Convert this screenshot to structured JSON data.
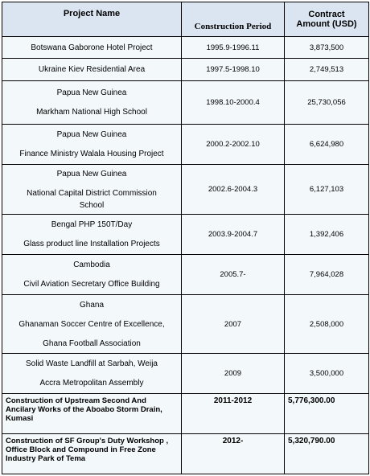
{
  "headers": {
    "project_name": "Project Name",
    "construction_period": "Construction Period",
    "contract_amount_line1": "Contract",
    "contract_amount_line2": "Amount (USD)"
  },
  "rows": [
    {
      "name_lines": [
        "Botswana Gaborone Hotel Project"
      ],
      "period": "1995.9-1996.11",
      "amount": "3,873,500"
    },
    {
      "name_lines": [
        "Ukraine Kiev Residential Area"
      ],
      "period": "1997.5-1998.10",
      "amount": "2,749,513"
    },
    {
      "name_lines": [
        "Papua New Guinea",
        "Markham National High School"
      ],
      "period": "1998.10-2000.4",
      "amount": "25,730,056"
    },
    {
      "name_lines": [
        "Papua New Guinea",
        "Finance Ministry Walala Housing Project"
      ],
      "period": "2000.2-2002.10",
      "amount": "6,624,980"
    },
    {
      "name_lines": [
        "Papua New Guinea",
        "National Capital District Commission",
        "School"
      ],
      "period": "2002.6-2004.3",
      "amount": "6,127,103"
    },
    {
      "name_lines": [
        "Bengal PHP 150T/Day",
        "Glass product line Installation Projects"
      ],
      "period": "2003.9-2004.7",
      "amount": "1,392,406"
    },
    {
      "name_lines": [
        "Cambodia",
        "Civil Aviation Secretary Office Building"
      ],
      "period": "2005.7-",
      "amount": "7,964,028"
    },
    {
      "name_lines": [
        "Ghana",
        "Ghanaman Soccer Centre of Excellence,",
        "Ghana Football Association"
      ],
      "period": "2007",
      "amount": "2,508,000"
    },
    {
      "name_lines": [
        "Solid Waste Landfill at Sarbah, Weija",
        "Accra Metropolitan Assembly"
      ],
      "period": "2009",
      "amount": "3,500,000"
    },
    {
      "name_lines": [
        "Construction of Upstream Second And Ancilary Works of the Aboabo Storm Drain, Kumasi"
      ],
      "period": "2011-2012",
      "amount": "5,776,300.00"
    },
    {
      "name_lines": [
        "Construction of SF Group's Duty Workshop , Office Block and Compound in Free Zone Industry Park of Tema"
      ],
      "period": "2012-",
      "amount": "5,320,790.00"
    }
  ]
}
